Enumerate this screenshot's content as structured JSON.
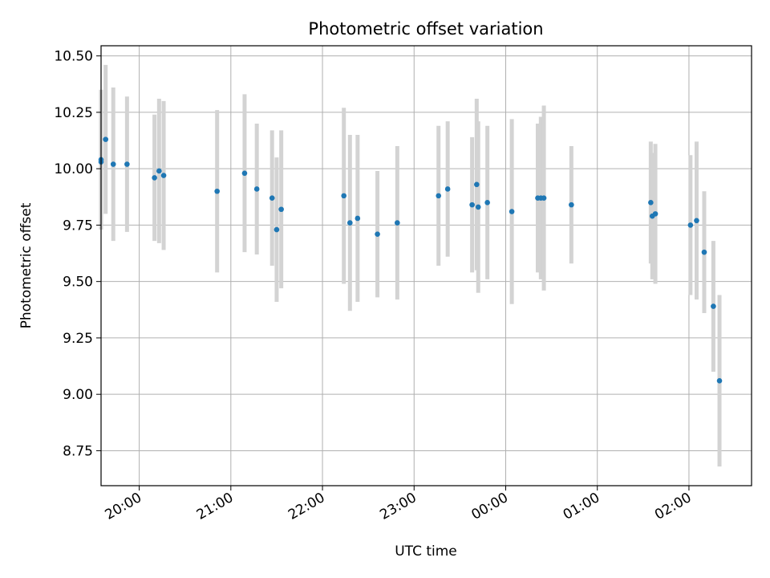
{
  "chart_data": {
    "type": "scatter",
    "title": "Photometric offset variation",
    "xlabel": "UTC time",
    "ylabel": "Photometric offset",
    "x_ticks": [
      "20:00",
      "21:00",
      "22:00",
      "23:00",
      "00:00",
      "01:00",
      "02:00"
    ],
    "y_ticks": [
      "8.75",
      "9.00",
      "9.25",
      "9.50",
      "9.75",
      "10.00",
      "10.25",
      "10.50"
    ],
    "xlim": [
      "19:35",
      "02:41"
    ],
    "ylim": [
      8.595,
      10.545
    ],
    "grid": true,
    "marker_color": "#1f77b4",
    "errorbar_color": "#d3d3d3",
    "points": [
      {
        "t": "19:35",
        "y": 10.04,
        "err": 0.31
      },
      {
        "t": "19:35",
        "y": 10.03,
        "err": 0.3
      },
      {
        "t": "19:38",
        "y": 10.13,
        "err": 0.33
      },
      {
        "t": "19:43",
        "y": 10.02,
        "err": 0.34
      },
      {
        "t": "19:52",
        "y": 10.02,
        "err": 0.3
      },
      {
        "t": "20:10",
        "y": 9.96,
        "err": 0.28
      },
      {
        "t": "20:13",
        "y": 9.99,
        "err": 0.32
      },
      {
        "t": "20:16",
        "y": 9.97,
        "err": 0.33
      },
      {
        "t": "20:51",
        "y": 9.9,
        "err": 0.36
      },
      {
        "t": "21:09",
        "y": 9.98,
        "err": 0.35
      },
      {
        "t": "21:17",
        "y": 9.91,
        "err": 0.29
      },
      {
        "t": "21:27",
        "y": 9.87,
        "err": 0.3
      },
      {
        "t": "21:30",
        "y": 9.73,
        "err": 0.32
      },
      {
        "t": "21:33",
        "y": 9.82,
        "err": 0.35
      },
      {
        "t": "22:14",
        "y": 9.88,
        "err": 0.39
      },
      {
        "t": "22:18",
        "y": 9.76,
        "err": 0.39
      },
      {
        "t": "22:23",
        "y": 9.78,
        "err": 0.37
      },
      {
        "t": "22:36",
        "y": 9.71,
        "err": 0.28
      },
      {
        "t": "22:49",
        "y": 9.76,
        "err": 0.34
      },
      {
        "t": "23:16",
        "y": 9.88,
        "err": 0.31
      },
      {
        "t": "23:22",
        "y": 9.91,
        "err": 0.3
      },
      {
        "t": "23:38",
        "y": 9.84,
        "err": 0.3
      },
      {
        "t": "23:41",
        "y": 9.93,
        "err": 0.38
      },
      {
        "t": "23:42",
        "y": 9.83,
        "err": 0.38
      },
      {
        "t": "23:48",
        "y": 9.85,
        "err": 0.34
      },
      {
        "t": "00:04",
        "y": 9.81,
        "err": 0.41
      },
      {
        "t": "00:21",
        "y": 9.87,
        "err": 0.33
      },
      {
        "t": "00:23",
        "y": 9.87,
        "err": 0.36
      },
      {
        "t": "00:25",
        "y": 9.87,
        "err": 0.41
      },
      {
        "t": "00:43",
        "y": 9.84,
        "err": 0.26
      },
      {
        "t": "01:35",
        "y": 9.85,
        "err": 0.27
      },
      {
        "t": "01:36",
        "y": 9.79,
        "err": 0.28
      },
      {
        "t": "01:38",
        "y": 9.8,
        "err": 0.31
      },
      {
        "t": "02:01",
        "y": 9.75,
        "err": 0.31
      },
      {
        "t": "02:05",
        "y": 9.77,
        "err": 0.35
      },
      {
        "t": "02:10",
        "y": 9.63,
        "err": 0.27
      },
      {
        "t": "02:16",
        "y": 9.39,
        "err": 0.29
      },
      {
        "t": "02:20",
        "y": 9.06,
        "err": 0.38
      }
    ]
  }
}
